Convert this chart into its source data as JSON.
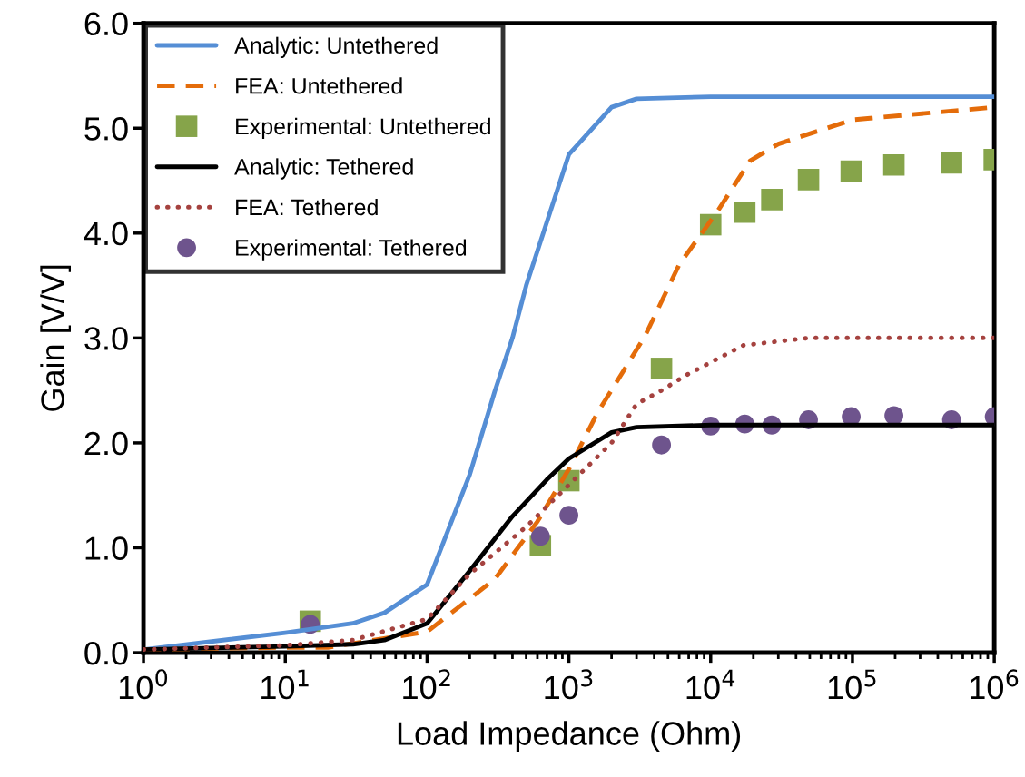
{
  "chart_data": {
    "type": "line",
    "xlabel": "Load Impedance (Ohm)",
    "ylabel": "Gain [V/V]",
    "log": "x",
    "xlim": [
      1,
      1000000
    ],
    "ylim": [
      0,
      6
    ],
    "xticks": [
      {
        "value": 1,
        "label": "10$^{0}$"
      },
      {
        "value": 10,
        "label": "10$^{1}$"
      },
      {
        "value": 100,
        "label": "10$^{2}$"
      },
      {
        "value": 1000,
        "label": "10$^{3}$"
      },
      {
        "value": 10000,
        "label": "10$^{4}$"
      },
      {
        "value": 100000,
        "label": "10$^{5}$"
      },
      {
        "value": 1000000,
        "label": "10$^{6}$"
      }
    ],
    "yticks": [
      {
        "value": 0,
        "label": "0.0"
      },
      {
        "value": 1,
        "label": "1.0"
      },
      {
        "value": 2,
        "label": "2.0"
      },
      {
        "value": 3,
        "label": "3.0"
      },
      {
        "value": 4,
        "label": "4.0"
      },
      {
        "value": 5,
        "label": "5.0"
      },
      {
        "value": 6,
        "label": "6.0"
      }
    ],
    "grid": false,
    "legend": "top left",
    "series": [
      {
        "name": "Analytic: Untethered",
        "line_style": "solid",
        "marker": "none",
        "color": "#558ed5",
        "x": [
          1,
          10,
          30,
          50,
          100,
          200,
          300,
          400,
          500,
          1000,
          2000,
          3000,
          10000,
          1000000
        ],
        "values": [
          0.03,
          0.19,
          0.28,
          0.38,
          0.65,
          1.7,
          2.49,
          3.0,
          3.5,
          4.75,
          5.2,
          5.28,
          5.3,
          5.3
        ]
      },
      {
        "name": "FEA: Untethered",
        "line_style": "dashed",
        "marker": "none",
        "color": "#e46c0a",
        "x": [
          1,
          10,
          20,
          100,
          300,
          600,
          1000,
          1580,
          3450,
          6000,
          11200,
          19000,
          30000,
          100000,
          1000000
        ],
        "values": [
          0.03,
          0.05,
          0.05,
          0.2,
          0.7,
          1.25,
          1.75,
          2.28,
          3.02,
          3.7,
          4.21,
          4.69,
          4.85,
          5.08,
          5.2
        ]
      },
      {
        "name": "Experimental: Untethered",
        "type": "scatter",
        "marker": "square",
        "color": "#86a44a",
        "x": [
          15,
          630,
          1000,
          4500,
          10000,
          17400,
          27000,
          49000,
          98000,
          196000,
          500000,
          1000000
        ],
        "values": [
          0.3,
          1.02,
          1.64,
          2.71,
          4.08,
          4.2,
          4.32,
          4.51,
          4.59,
          4.65,
          4.67,
          4.7
        ]
      },
      {
        "name": "Analytic: Tethered",
        "line_style": "solid",
        "marker": "none",
        "color": "#000000",
        "x": [
          1,
          10,
          30,
          50,
          100,
          200,
          400,
          700,
          1000,
          2000,
          3000,
          10000,
          1000000
        ],
        "values": [
          0.03,
          0.06,
          0.08,
          0.12,
          0.28,
          0.78,
          1.3,
          1.65,
          1.85,
          2.1,
          2.15,
          2.17,
          2.17
        ]
      },
      {
        "name": "FEA: Tethered",
        "line_style": "dotted",
        "marker": "none",
        "color": "#a5423f",
        "x": [
          1,
          10,
          30,
          100,
          200,
          500,
          1000,
          2000,
          3000,
          4500,
          6600,
          17000,
          49000,
          1000000
        ],
        "values": [
          0.03,
          0.07,
          0.12,
          0.32,
          0.75,
          1.2,
          1.6,
          2.0,
          2.37,
          2.5,
          2.64,
          2.93,
          3.0,
          3.0
        ]
      },
      {
        "name": "Experimental: Tethered",
        "type": "scatter",
        "marker": "circle",
        "color": "#6e548d",
        "x": [
          15,
          630,
          1000,
          4500,
          10000,
          17400,
          27000,
          49000,
          98000,
          196000,
          500000,
          1000000
        ],
        "values": [
          0.27,
          1.11,
          1.31,
          1.98,
          2.16,
          2.18,
          2.17,
          2.22,
          2.25,
          2.26,
          2.22,
          2.25
        ]
      }
    ]
  }
}
